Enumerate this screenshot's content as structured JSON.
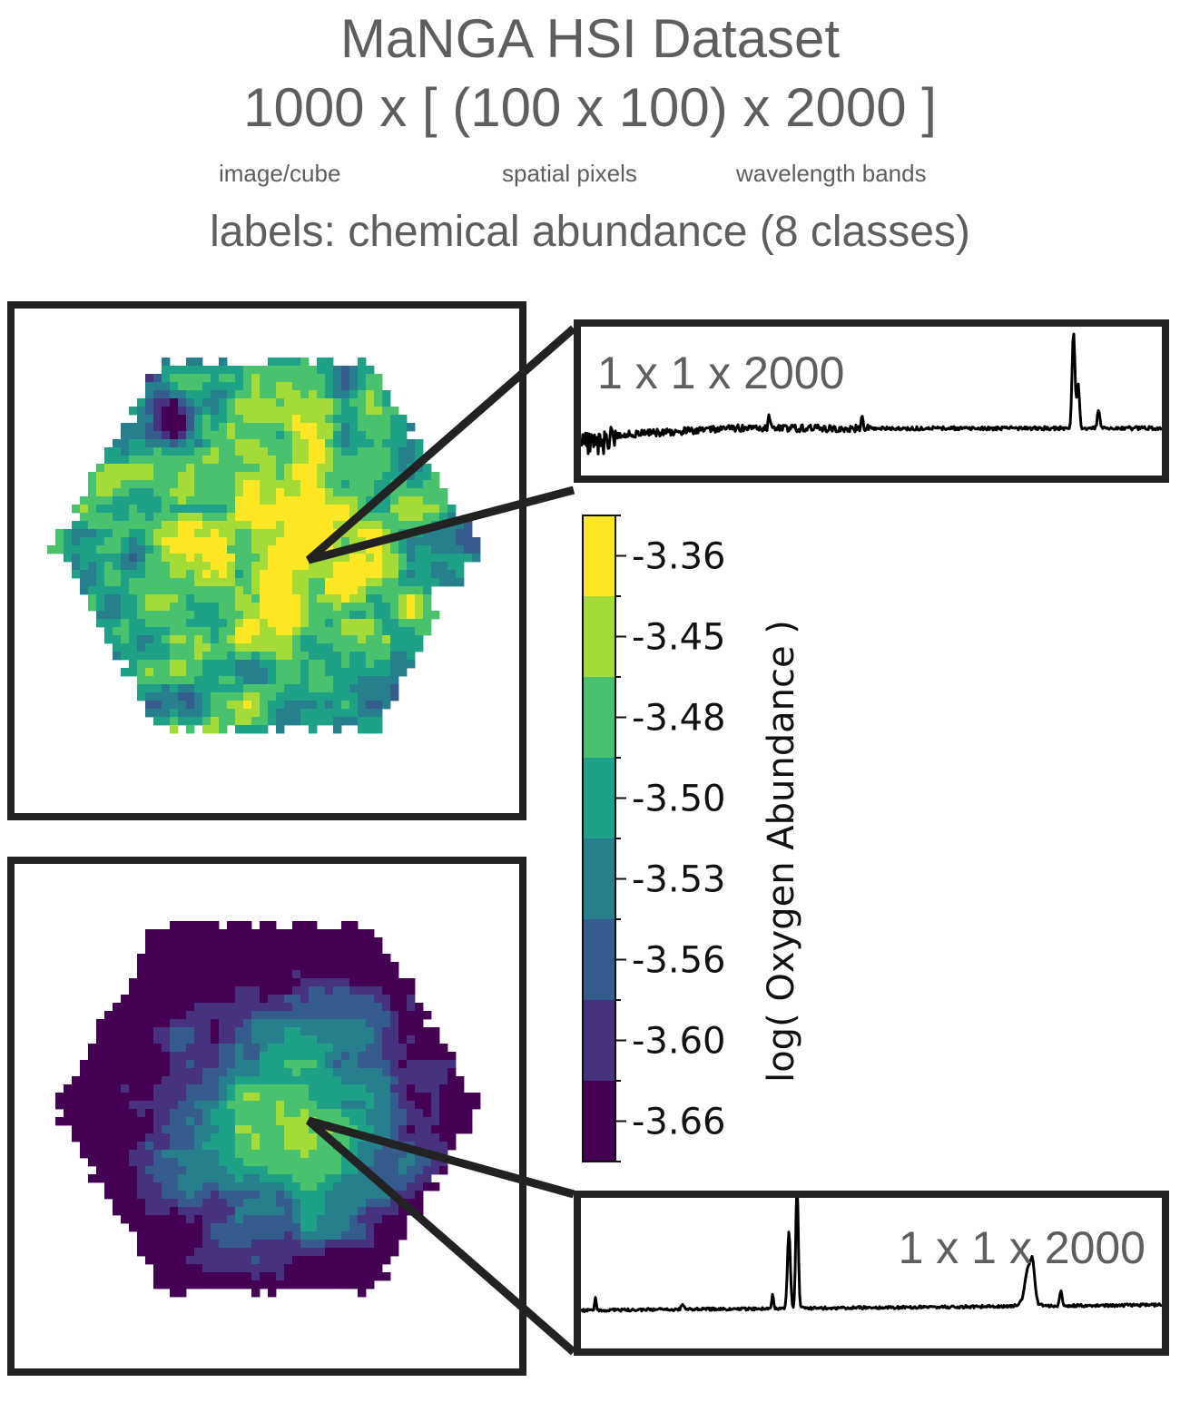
{
  "header": {
    "title_line1": "MaNGA HSI Dataset",
    "title_line2": "1000 x [ (100 x 100) x 2000 ]",
    "sublabels": [
      "image/cube",
      "spatial pixels",
      "wavelength bands"
    ],
    "labels_line": "labels: chemical abundance (8 classes)"
  },
  "spectra": [
    {
      "label": "1 x 1 x 2000"
    },
    {
      "label": "1 x 1 x 2000"
    }
  ],
  "colorbar": {
    "title": "log( Oxygen Abundance )",
    "tick_labels": [
      "-3.36",
      "-3.45",
      "-3.48",
      "-3.50",
      "-3.53",
      "-3.56",
      "-3.60",
      "-3.66"
    ],
    "colors": [
      "#fde725",
      "#a5db36",
      "#4ac16d",
      "#1fa187",
      "#277f8e",
      "#365c8d",
      "#46327e",
      "#440154"
    ],
    "n_classes": 8
  },
  "colors": {
    "text_gray": "#5e5e5e",
    "frame": "#222222",
    "spectrum_line": "#000000"
  }
}
